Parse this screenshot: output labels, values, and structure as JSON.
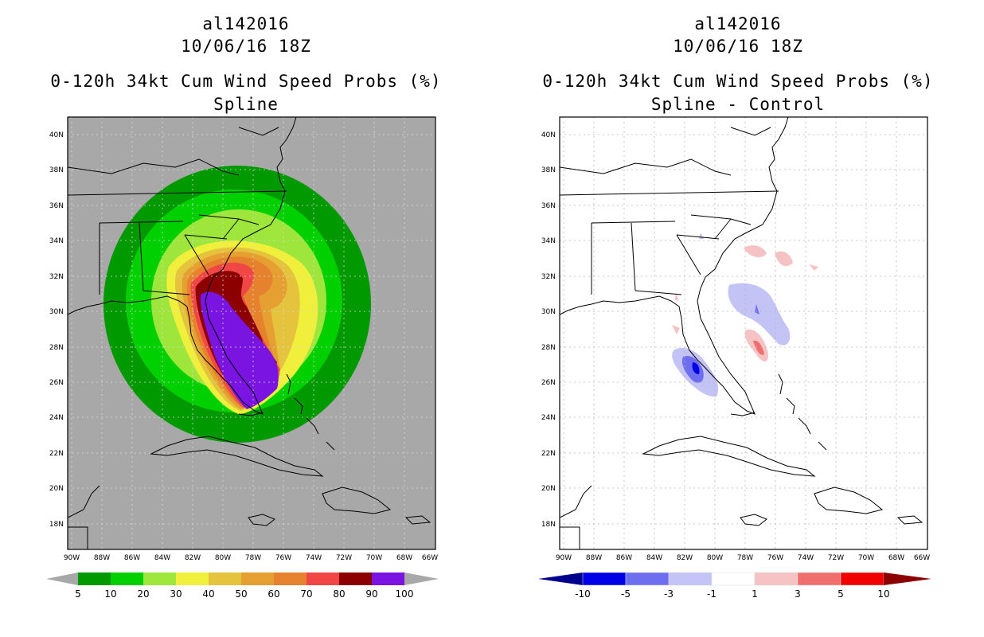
{
  "left_panel": {
    "storm_id": "al142016",
    "datetime": "10/06/16 18Z",
    "product": "0-120h 34kt Cum Wind Speed Probs (%)",
    "method": "Spline",
    "lat_labels": [
      "40N",
      "38N",
      "36N",
      "34N",
      "32N",
      "30N",
      "28N",
      "26N",
      "24N",
      "22N",
      "20N",
      "18N"
    ],
    "lon_labels": [
      "90W",
      "88W",
      "86W",
      "84W",
      "82W",
      "80W",
      "78W",
      "76W",
      "74W",
      "72W",
      "70W",
      "68W",
      "66W"
    ],
    "colorbar": {
      "labels": [
        "5",
        "10",
        "20",
        "30",
        "40",
        "50",
        "60",
        "70",
        "80",
        "90",
        "100"
      ],
      "colors": [
        "#009a00",
        "#00cf00",
        "#9ee63c",
        "#f0f03c",
        "#e6c33c",
        "#e6a032",
        "#e6822d",
        "#f04646",
        "#8c0000",
        "#7a14e0"
      ],
      "below_color": "#a8a8a8",
      "above_color": "#a8a8a8"
    }
  },
  "right_panel": {
    "storm_id": "al142016",
    "datetime": "10/06/16 18Z",
    "product": "0-120h 34kt Cum Wind Speed Probs (%)",
    "method": "Spline - Control",
    "lat_labels": [
      "40N",
      "38N",
      "36N",
      "34N",
      "32N",
      "30N",
      "28N",
      "26N",
      "24N",
      "22N",
      "20N",
      "18N"
    ],
    "lon_labels": [
      "90W",
      "88W",
      "86W",
      "84W",
      "82W",
      "80W",
      "78W",
      "76W",
      "74W",
      "72W",
      "70W",
      "68W",
      "66W"
    ],
    "colorbar": {
      "labels": [
        "-10",
        "-5",
        "-3",
        "-1",
        "1",
        "3",
        "5",
        "10"
      ],
      "colors": [
        "#0000e6",
        "#6e6ef0",
        "#c3c3f5",
        "#ffffff",
        "#f5c3c3",
        "#f06e6e",
        "#f00000"
      ],
      "below_color": "#00008c",
      "above_color": "#8c0000"
    }
  }
}
